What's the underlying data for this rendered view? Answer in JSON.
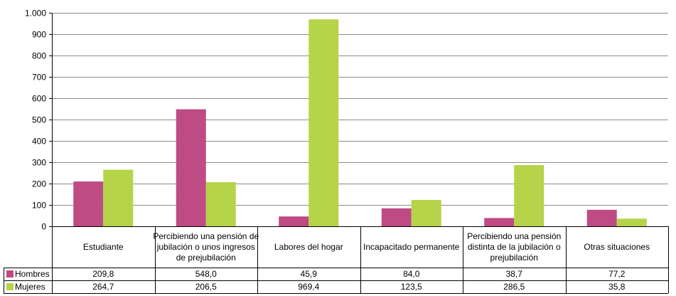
{
  "chart_data": {
    "type": "bar",
    "categories": [
      "Estudiante",
      "Percibiendo una pensión de jubilación o unos ingresos de prejubilación",
      "Labores del hogar",
      "Incapacitado permanente",
      "Percibiendo una pensión distinta de la jubilación o prejubilación",
      "Otras situaciones"
    ],
    "category_lines": [
      [
        "Estudiante"
      ],
      [
        "Percibiendo una pensión de",
        "jubilación o unos ingresos",
        "de prejubilación"
      ],
      [
        "Labores del hogar"
      ],
      [
        "Incapacitado permanente"
      ],
      [
        "Percibiendo una pensión",
        "distinta de la jubilación o",
        "prejubilación"
      ],
      [
        "Otras situaciones"
      ]
    ],
    "series": [
      {
        "name": "Hombres",
        "color": "#be4b83",
        "values": [
          209.8,
          548.0,
          45.9,
          84.0,
          38.7,
          77.2
        ],
        "labels": [
          "209,8",
          "548,0",
          "45,9",
          "84,0",
          "38,7",
          "77,2"
        ]
      },
      {
        "name": "Mujeres",
        "color": "#b5d44a",
        "values": [
          264.7,
          206.5,
          969.4,
          123.5,
          286.5,
          35.8
        ],
        "labels": [
          "264,7",
          "206,5",
          "969,4",
          "123,5",
          "286,5",
          "35,8"
        ]
      }
    ],
    "ylim": [
      0,
      1000
    ],
    "yticks": [
      0,
      100,
      200,
      300,
      400,
      500,
      600,
      700,
      800,
      900,
      1000
    ],
    "ytick_labels": [
      "0",
      "100",
      "200",
      "300",
      "400",
      "500",
      "600",
      "700",
      "800",
      "900",
      "1.000"
    ],
    "grid": true,
    "legend": "data table below chart"
  }
}
